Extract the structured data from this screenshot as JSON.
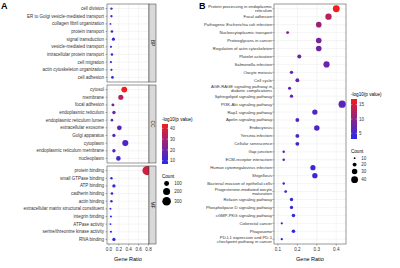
{
  "chart_data": [
    {
      "type": "scatter",
      "panel_label": "A",
      "orientation": "horizontal",
      "x_label": "Gene Ratio",
      "xlim": [
        -0.04,
        0.81
      ],
      "xticks": [
        {
          "value": 0,
          "label": "0.0"
        },
        0.2,
        0.4,
        0.6,
        0.8
      ],
      "grid": true,
      "facets": [
        {
          "name": "BP",
          "categories": [
            "cell division",
            "ER to Golgi vesicle-mediated transport",
            "collagen fibril organization",
            "protein transport",
            "signal transduction",
            "vesicle-mediated transport",
            "intracellular protein transport",
            "cell migration",
            "actin cytoskeleton organization",
            "cell adhesion"
          ],
          "values": [
            0.05,
            0.05,
            0.03,
            0.06,
            0.09,
            0.04,
            0.06,
            0.04,
            0.05,
            0.07
          ],
          "count": [
            22,
            21,
            13,
            27,
            40,
            18,
            26,
            19,
            20,
            30
          ],
          "neg_log10_p": [
            12,
            12,
            11,
            10,
            10,
            9,
            9,
            9,
            9,
            8
          ]
        },
        {
          "name": "CC",
          "categories": [
            "cytosol",
            "membrane",
            "focal adhesion",
            "endoplasmic reticulum",
            "endoplasmic reticulum lumen",
            "extracellular exosome",
            "Golgi apparatus",
            "cytoplasm",
            "endoplasmic reticulum membrane",
            "nucleoplasm"
          ],
          "values": [
            0.31,
            0.24,
            0.08,
            0.1,
            0.06,
            0.21,
            0.1,
            0.33,
            0.1,
            0.19
          ],
          "count": [
            140,
            108,
            36,
            45,
            28,
            95,
            44,
            150,
            46,
            86
          ],
          "neg_log10_p": [
            44,
            33,
            22,
            20,
            18,
            17,
            15,
            14,
            13,
            12
          ]
        },
        {
          "name": "MF",
          "categories": [
            "protein binding",
            "small GTPase binding",
            "ATP binding",
            "cadherin binding",
            "actin binding",
            "extracellular matrix structural constituent",
            "integrin binding",
            "ATPase activity",
            "serine/threonine kinase activity",
            "RNA binding"
          ],
          "values": [
            0.77,
            0.05,
            0.1,
            0.06,
            0.05,
            0.03,
            0.04,
            0.03,
            0.04,
            0.1
          ],
          "count": [
            346,
            24,
            45,
            28,
            24,
            15,
            16,
            15,
            18,
            44
          ],
          "neg_log10_p": [
            38,
            10,
            9,
            9,
            8,
            8,
            8,
            7,
            7,
            7
          ]
        }
      ],
      "colorbar": {
        "title": "-log10(p value)",
        "range": [
          7,
          44
        ],
        "ticks": [
          10,
          20,
          30,
          40
        ]
      },
      "size_legend": {
        "title": "Count",
        "values": [
          100,
          200,
          300
        ]
      }
    },
    {
      "type": "scatter",
      "panel_label": "B",
      "orientation": "horizontal",
      "x_label": "Gene Ratio",
      "xlim": [
        0.08,
        0.45
      ],
      "xticks": [
        0.1,
        0.2,
        0.3,
        0.4
      ],
      "grid": true,
      "categories": [
        "Protein processing in endoplasmic reticulum",
        "Focal adhesion",
        "Pathogenic Escherichia coli infection",
        "Nucleocytoplasmic transport",
        "Proteoglycans in cancer",
        "Regulation of actin cytoskeleton",
        "Platelet activation",
        "Salmonella infection",
        "Oocyte meiosis",
        "Cell cycle",
        "AGE-RAGE signaling pathway in diabetic complications",
        "Sphingolipid signaling pathway",
        "PI3K-Akt signaling pathway",
        "Rap1 signaling pathway",
        "Apelin signaling pathway",
        "Endocytosis",
        "Yersinia infection",
        "Cellular senescence",
        "Gap junction",
        "ECM-receptor interaction",
        "Human cytomegalovirus infection",
        "Shigellosis",
        "Bacterial invasion of epithelial cells",
        "Progesterone-mediated oocyte maturation",
        "Relaxin signaling pathway",
        "Phospholipase D signaling pathway",
        "cGMP-PKG signaling pathway",
        "Colorectal cancer",
        "Phagosome",
        "PD-L1 expression and PD-1 checkpoint pathway in cancer"
      ],
      "values": [
        0.4,
        0.36,
        0.31,
        0.15,
        0.31,
        0.31,
        0.21,
        0.35,
        0.17,
        0.2,
        0.16,
        0.17,
        0.43,
        0.29,
        0.2,
        0.3,
        0.2,
        0.2,
        0.13,
        0.13,
        0.28,
        0.29,
        0.13,
        0.14,
        0.17,
        0.17,
        0.18,
        0.12,
        0.18,
        0.12
      ],
      "count": [
        40,
        36,
        31,
        15,
        31,
        31,
        21,
        35,
        17,
        20,
        16,
        17,
        43,
        29,
        20,
        30,
        20,
        20,
        13,
        13,
        28,
        29,
        13,
        14,
        17,
        17,
        18,
        12,
        18,
        12
      ],
      "neg_log10_p": [
        17,
        13,
        11,
        9,
        8.5,
        8,
        8,
        7.5,
        7,
        7,
        7,
        6.5,
        6.5,
        6,
        6,
        5.5,
        5.5,
        5,
        5,
        5,
        4.5,
        4.5,
        4.5,
        4,
        4,
        4,
        3.5,
        3.5,
        3.5,
        3
      ],
      "colorbar": {
        "title": "-log10(p value)",
        "range": [
          3,
          17
        ],
        "ticks": [
          5,
          10,
          15
        ]
      },
      "size_legend": {
        "title": "Count",
        "values": [
          10,
          20,
          30,
          40
        ]
      }
    }
  ]
}
